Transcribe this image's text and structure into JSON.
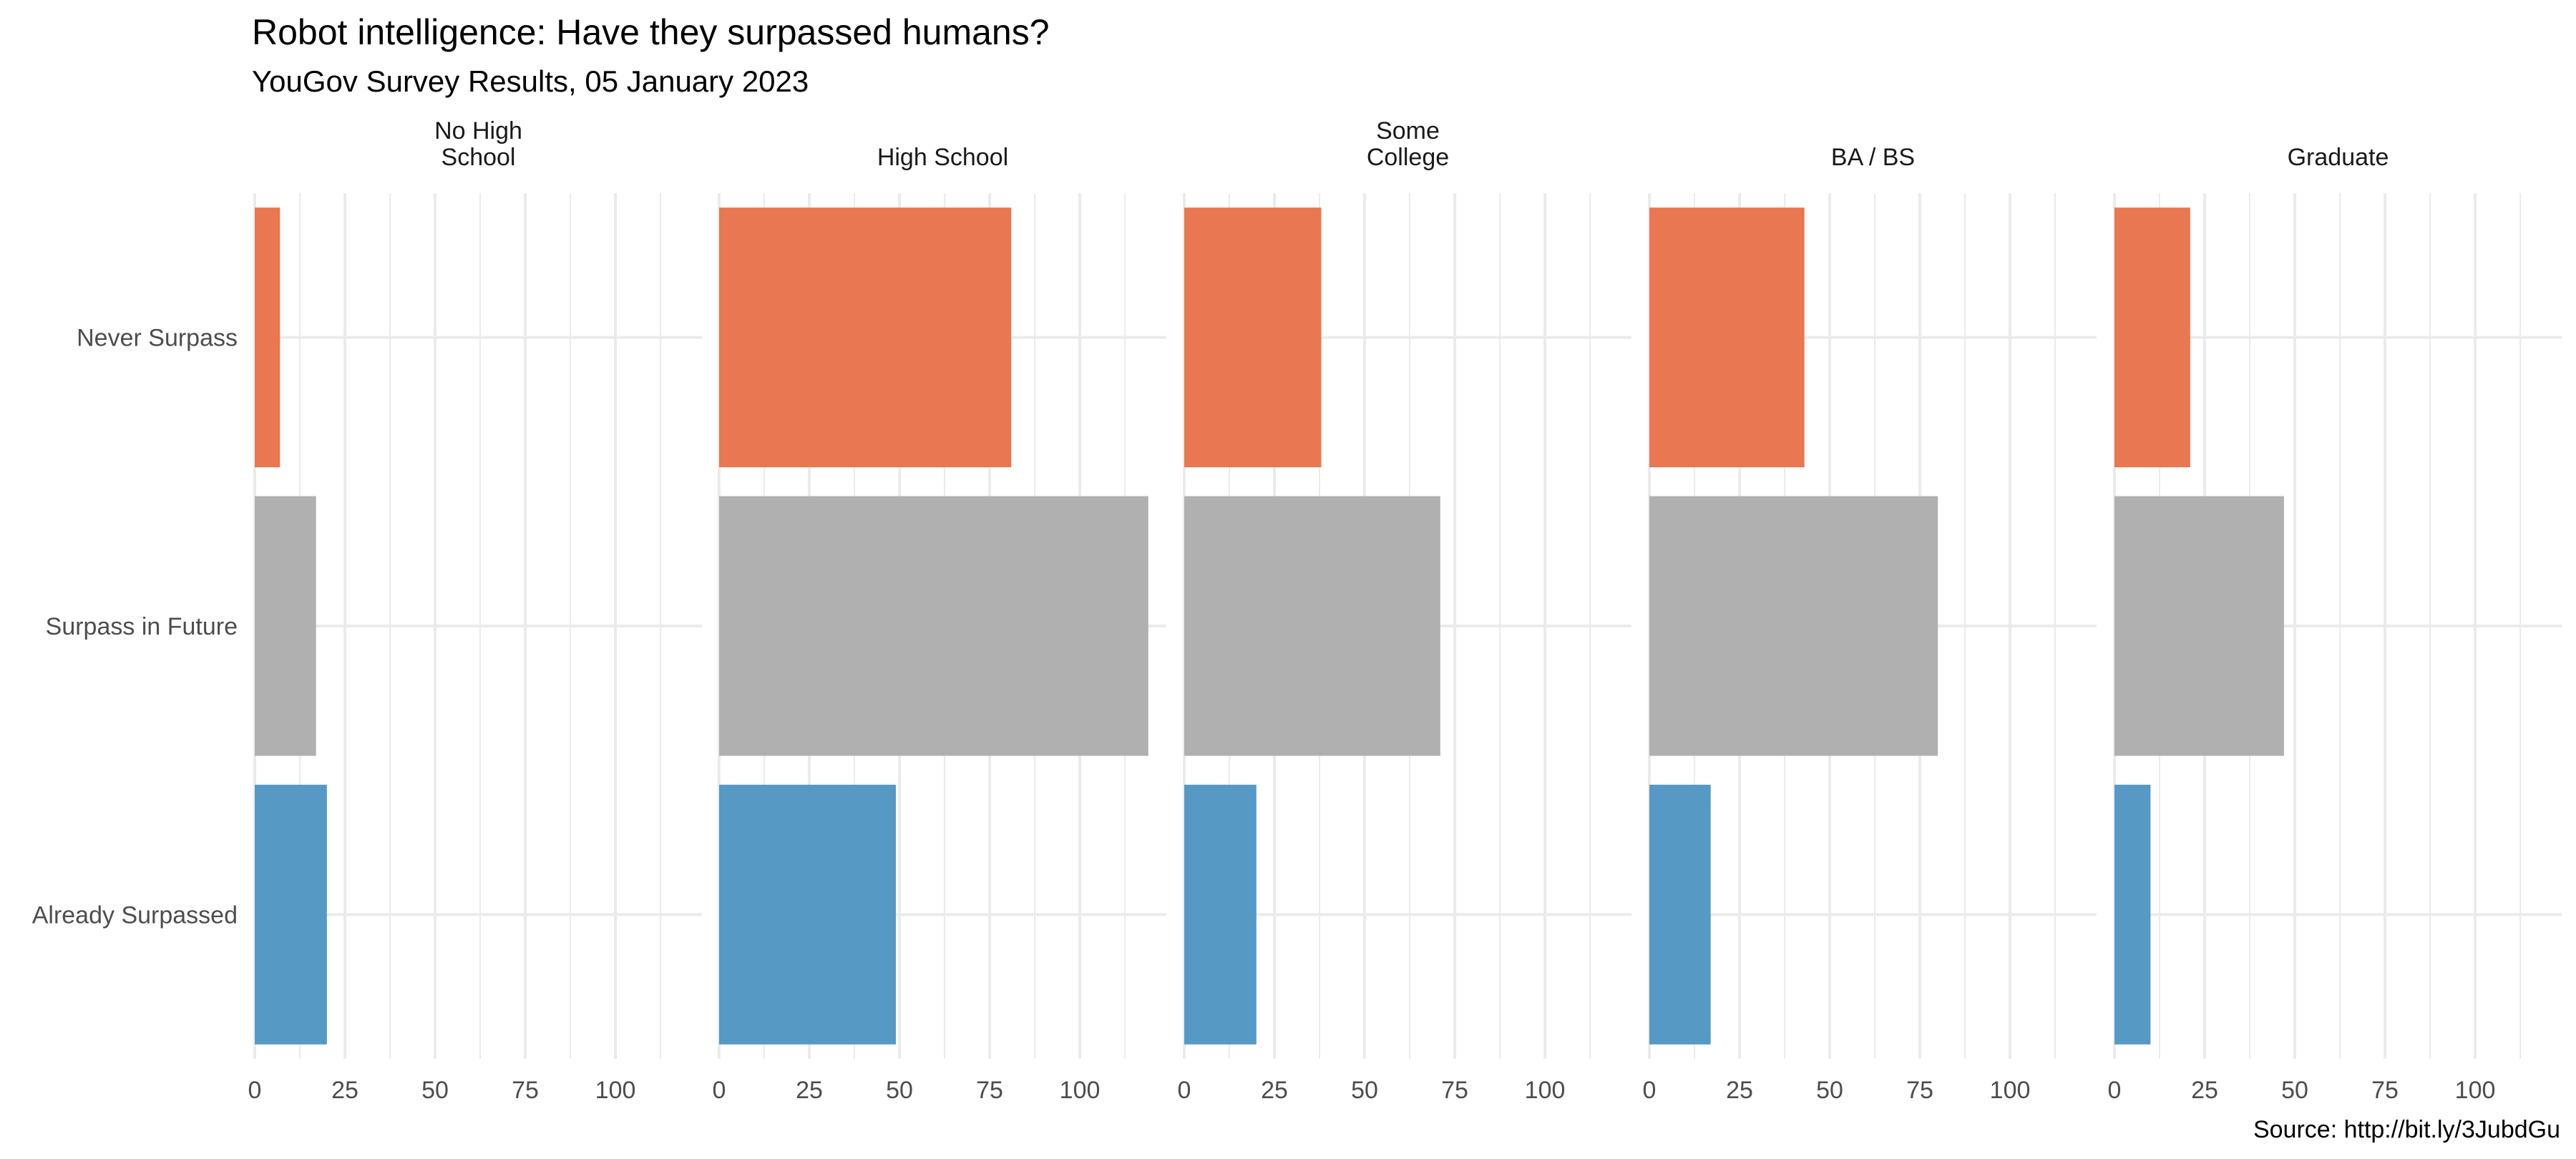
{
  "chart_data": {
    "type": "bar",
    "orientation": "horizontal",
    "title": "Robot intelligence: Have they surpassed humans?",
    "subtitle": "YouGov Survey Results, 05 January 2023",
    "caption": "Source: http://bit.ly/3JubdGu",
    "xlabel": "",
    "ylabel": "",
    "xlim": [
      0,
      124
    ],
    "x_ticks": [
      0,
      25,
      50,
      75,
      100
    ],
    "grid": true,
    "legend": "none",
    "categories": [
      "Never Surpass",
      "Surpass in Future",
      "Already Surpassed"
    ],
    "colors": {
      "Never Surpass": "#E87752",
      "Surpass in Future": "#B0B0B0",
      "Already Surpassed": "#5699C5"
    },
    "facets": [
      {
        "label_lines": [
          "No High",
          "School"
        ],
        "values": [
          7,
          17,
          20
        ]
      },
      {
        "label_lines": [
          "High School"
        ],
        "values": [
          81,
          119,
          49
        ]
      },
      {
        "label_lines": [
          "Some",
          "College"
        ],
        "values": [
          38,
          71,
          20
        ]
      },
      {
        "label_lines": [
          "BA / BS"
        ],
        "values": [
          43,
          80,
          17
        ]
      },
      {
        "label_lines": [
          "Graduate"
        ],
        "values": [
          21,
          47,
          10
        ]
      }
    ]
  }
}
